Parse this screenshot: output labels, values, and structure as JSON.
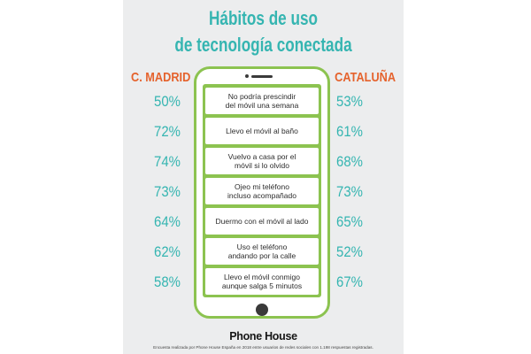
{
  "title_line1": "Hábitos de uso",
  "title_line2": "de tecnología conectada",
  "brand_logo": "Phone House",
  "footnote": "Encuesta realizada por Phone House España en 2018 entre usuarios de redes sociales con 1.198 respuestas registradas.",
  "colors": {
    "teal": "#35b5b1",
    "orange": "#e5622c",
    "green": "#8cc350",
    "background": "#ecedee"
  },
  "chart_data": {
    "type": "table",
    "series": [
      {
        "name": "C. MADRID",
        "values": [
          50,
          72,
          74,
          73,
          64,
          62,
          58
        ]
      },
      {
        "name": "CATALUÑA",
        "values": [
          53,
          61,
          68,
          73,
          65,
          52,
          67
        ]
      }
    ],
    "categories": [
      "No podría prescindir\ndel móvil una semana",
      "Llevo el móvil al baño",
      "Vuelvo a casa por el\nmóvil si lo olvido",
      "Ojeo mi teléfono\nincluso acompañado",
      "Duermo con el móvil al lado",
      "Uso el teléfono\nandando por la calle",
      "Llevo el móvil conmigo\naunque  salga 5 minutos"
    ],
    "unit": "%"
  }
}
